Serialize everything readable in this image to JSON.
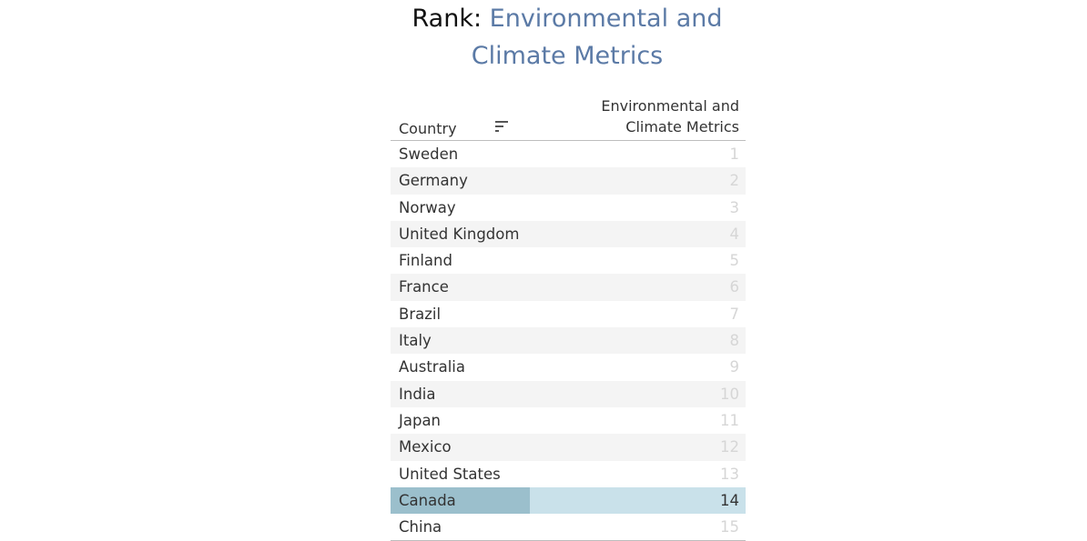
{
  "title": {
    "prefix": "Rank:",
    "metric_line1": "Environmental and",
    "metric_line2": "Climate Metrics"
  },
  "colors": {
    "title_metric": "#5b7aa6",
    "highlight_row": "#c9e1ea",
    "highlight_country": "#9bbfcc",
    "rank_text_muted": "#d6d6d6"
  },
  "chart_data": {
    "type": "table",
    "columns": [
      "Country",
      "Environmental and Climate Metrics"
    ],
    "header": {
      "country": "Country",
      "metric_line1": "Environmental and",
      "metric_line2": "Climate Metrics",
      "sort_icon": "sort-descending-icon"
    },
    "highlighted": "Canada",
    "rows": [
      {
        "country": "Sweden",
        "rank": "1"
      },
      {
        "country": "Germany",
        "rank": "2"
      },
      {
        "country": "Norway",
        "rank": "3"
      },
      {
        "country": "United Kingdom",
        "rank": "4"
      },
      {
        "country": "Finland",
        "rank": "5"
      },
      {
        "country": "France",
        "rank": "6"
      },
      {
        "country": "Brazil",
        "rank": "7"
      },
      {
        "country": "Italy",
        "rank": "8"
      },
      {
        "country": "Australia",
        "rank": "9"
      },
      {
        "country": "India",
        "rank": "10"
      },
      {
        "country": "Japan",
        "rank": "11"
      },
      {
        "country": "Mexico",
        "rank": "12"
      },
      {
        "country": "United States",
        "rank": "13"
      },
      {
        "country": "Canada",
        "rank": "14"
      },
      {
        "country": "China",
        "rank": "15"
      }
    ]
  }
}
